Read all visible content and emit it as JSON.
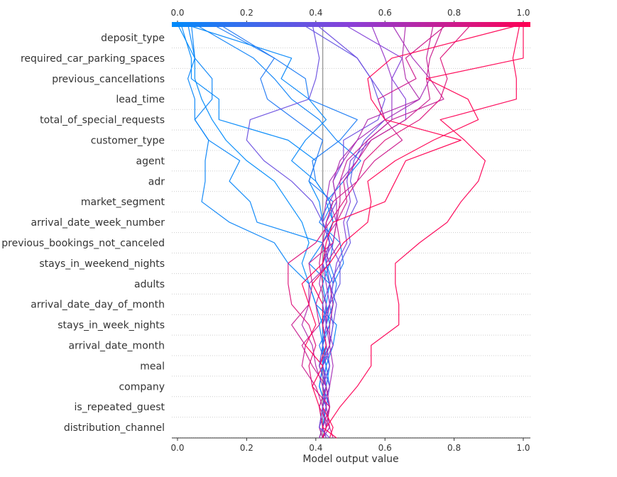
{
  "chart_data": {
    "type": "line",
    "subtype": "shap-decision-plot",
    "title": "",
    "xlabel": "Model output value",
    "ylabel": "",
    "xlim": [
      0.0,
      1.0
    ],
    "x_ticks": [
      "0.0",
      "0.2",
      "0.4",
      "0.6",
      "0.8",
      "1.0"
    ],
    "top_ticks": [
      "0.0",
      "0.2",
      "0.4",
      "0.6",
      "0.8",
      "1.0"
    ],
    "base_value": 0.42,
    "colorbar": {
      "from": "#008bfb",
      "mid": "#8a3fd8",
      "to": "#ff0052"
    },
    "grid": "dotted horizontal",
    "features": [
      "deposit_type",
      "required_car_parking_spaces",
      "previous_cancellations",
      "lead_time",
      "total_of_special_requests",
      "customer_type",
      "agent",
      "adr",
      "market_segment",
      "arrival_date_week_number",
      "previous_bookings_not_canceled",
      "stays_in_weekend_nights",
      "adults",
      "arrival_date_day_of_month",
      "stays_in_week_nights",
      "arrival_date_month",
      "meal",
      "company",
      "is_repeated_guest",
      "distribution_channel"
    ],
    "series": [
      {
        "values": [
          0.42,
          0.43,
          0.44,
          0.42,
          0.43,
          0.42,
          0.44,
          0.43,
          0.44,
          0.42,
          0.44,
          0.42,
          0.41,
          0.38,
          0.4,
          0.32,
          0.12,
          0.12,
          0.04,
          0.04,
          0.01
        ]
      },
      {
        "values": [
          0.41,
          0.42,
          0.43,
          0.41,
          0.42,
          0.43,
          0.42,
          0.4,
          0.38,
          0.36,
          0.38,
          0.36,
          0.32,
          0.28,
          0.2,
          0.14,
          0.1,
          0.07,
          0.05,
          0.05,
          0.0
        ]
      },
      {
        "values": [
          0.41,
          0.42,
          0.41,
          0.43,
          0.44,
          0.42,
          0.41,
          0.44,
          0.45,
          0.43,
          0.42,
          0.23,
          0.21,
          0.15,
          0.18,
          0.09,
          0.05,
          0.05,
          0.03,
          0.05,
          0.03
        ]
      },
      {
        "values": [
          0.42,
          0.43,
          0.42,
          0.44,
          0.43,
          0.45,
          0.46,
          0.4,
          0.38,
          0.32,
          0.28,
          0.15,
          0.07,
          0.08,
          0.08,
          0.09,
          0.05,
          0.1,
          0.1,
          0.05,
          0.04
        ]
      },
      {
        "values": [
          0.41,
          0.42,
          0.43,
          0.41,
          0.42,
          0.42,
          0.43,
          0.45,
          0.44,
          0.38,
          0.42,
          0.45,
          0.43,
          0.48,
          0.53,
          0.46,
          0.41,
          0.33,
          0.28,
          0.22,
          0.05
        ]
      },
      {
        "values": [
          0.42,
          0.41,
          0.42,
          0.43,
          0.41,
          0.42,
          0.42,
          0.44,
          0.45,
          0.48,
          0.47,
          0.41,
          0.44,
          0.4,
          0.39,
          0.47,
          0.52,
          0.38,
          0.37,
          0.28,
          0.1
        ]
      },
      {
        "values": [
          0.42,
          0.43,
          0.44,
          0.42,
          0.44,
          0.43,
          0.42,
          0.43,
          0.42,
          0.44,
          0.42,
          0.45,
          0.44,
          0.4,
          0.33,
          0.37,
          0.43,
          0.38,
          0.3,
          0.33,
          0.02
        ]
      },
      {
        "values": [
          0.41,
          0.42,
          0.44,
          0.42,
          0.43,
          0.41,
          0.44,
          0.45,
          0.46,
          0.44,
          0.45,
          0.42,
          0.45,
          0.38,
          0.4,
          0.42,
          0.34,
          0.26,
          0.24,
          0.28,
          0.12
        ]
      },
      {
        "values": [
          0.43,
          0.42,
          0.44,
          0.43,
          0.42,
          0.44,
          0.45,
          0.44,
          0.47,
          0.47,
          0.5,
          0.49,
          0.52,
          0.5,
          0.51,
          0.54,
          0.6,
          0.58,
          0.56,
          0.52,
          0.36
        ]
      },
      {
        "values": [
          0.42,
          0.44,
          0.43,
          0.42,
          0.44,
          0.43,
          0.42,
          0.44,
          0.45,
          0.46,
          0.49,
          0.48,
          0.5,
          0.49,
          0.5,
          0.56,
          0.66,
          0.66,
          0.62,
          0.65,
          0.48
        ]
      },
      {
        "values": [
          0.42,
          0.41,
          0.43,
          0.44,
          0.42,
          0.44,
          0.45,
          0.46,
          0.44,
          0.47,
          0.44,
          0.43,
          0.46,
          0.45,
          0.48,
          0.48,
          0.58,
          0.6,
          0.56,
          0.52,
          0.4
        ]
      },
      {
        "values": [
          0.43,
          0.42,
          0.44,
          0.43,
          0.42,
          0.45,
          0.43,
          0.44,
          0.43,
          0.42,
          0.45,
          0.46,
          0.44,
          0.47,
          0.52,
          0.55,
          0.62,
          0.62,
          0.62,
          0.6,
          0.56
        ]
      },
      {
        "values": [
          0.42,
          0.43,
          0.42,
          0.44,
          0.45,
          0.44,
          0.43,
          0.43,
          0.41,
          0.42,
          0.44,
          0.42,
          0.43,
          0.44,
          0.48,
          0.52,
          0.6,
          0.7,
          0.73,
          0.68,
          0.62
        ]
      },
      {
        "values": [
          0.41,
          0.42,
          0.44,
          0.43,
          0.41,
          0.44,
          0.44,
          0.45,
          0.44,
          0.43,
          0.47,
          0.46,
          0.47,
          0.47,
          0.49,
          0.55,
          0.62,
          0.77,
          0.73,
          0.72,
          0.74
        ]
      },
      {
        "values": [
          0.42,
          0.44,
          0.43,
          0.42,
          0.4,
          0.39,
          0.36,
          0.38,
          0.38,
          0.44,
          0.42,
          0.46,
          0.46,
          0.45,
          0.47,
          0.52,
          0.55,
          0.7,
          0.66,
          0.65,
          0.66
        ]
      },
      {
        "values": [
          0.42,
          0.41,
          0.42,
          0.4,
          0.36,
          0.37,
          0.33,
          0.38,
          0.39,
          0.38,
          0.45,
          0.46,
          0.49,
          0.48,
          0.52,
          0.56,
          0.66,
          0.73,
          0.72,
          0.73,
          0.77
        ]
      },
      {
        "values": [
          0.42,
          0.43,
          0.44,
          0.39,
          0.38,
          0.4,
          0.38,
          0.33,
          0.32,
          0.32,
          0.4,
          0.44,
          0.48,
          0.52,
          0.54,
          0.6,
          0.7,
          0.76,
          0.78,
          0.76,
          0.85
        ]
      },
      {
        "values": [
          0.45,
          0.44,
          0.41,
          0.43,
          0.39,
          0.36,
          0.41,
          0.4,
          0.42,
          0.41,
          0.42,
          0.43,
          0.45,
          0.52,
          0.57,
          0.65,
          0.6,
          0.58,
          0.69,
          0.66,
          0.78
        ]
      },
      {
        "values": [
          0.46,
          0.42,
          0.41,
          0.39,
          0.42,
          0.37,
          0.4,
          0.38,
          0.36,
          0.42,
          0.43,
          0.45,
          0.6,
          0.63,
          0.66,
          0.82,
          0.6,
          0.56,
          0.55,
          0.62,
          1.0
        ]
      },
      {
        "values": [
          0.44,
          0.45,
          0.42,
          0.43,
          0.41,
          0.43,
          0.42,
          0.42,
          0.39,
          0.44,
          0.48,
          0.55,
          0.56,
          0.55,
          0.63,
          0.74,
          0.87,
          0.84,
          0.72,
          1.0,
          1.0
        ]
      },
      {
        "values": [
          0.42,
          0.43,
          0.47,
          0.52,
          0.56,
          0.56,
          0.64,
          0.64,
          0.63,
          0.63,
          0.7,
          0.78,
          0.82,
          0.87,
          0.89,
          0.83,
          0.76,
          0.98,
          0.98,
          0.97,
          0.99
        ]
      },
      {
        "values": [
          0.44,
          0.41,
          0.42,
          0.43,
          0.41,
          0.42,
          0.43,
          0.42,
          0.44,
          0.43,
          0.44,
          0.42,
          0.39,
          0.33,
          0.25,
          0.2,
          0.21,
          0.38,
          0.4,
          0.41,
          0.39
        ]
      }
    ]
  }
}
